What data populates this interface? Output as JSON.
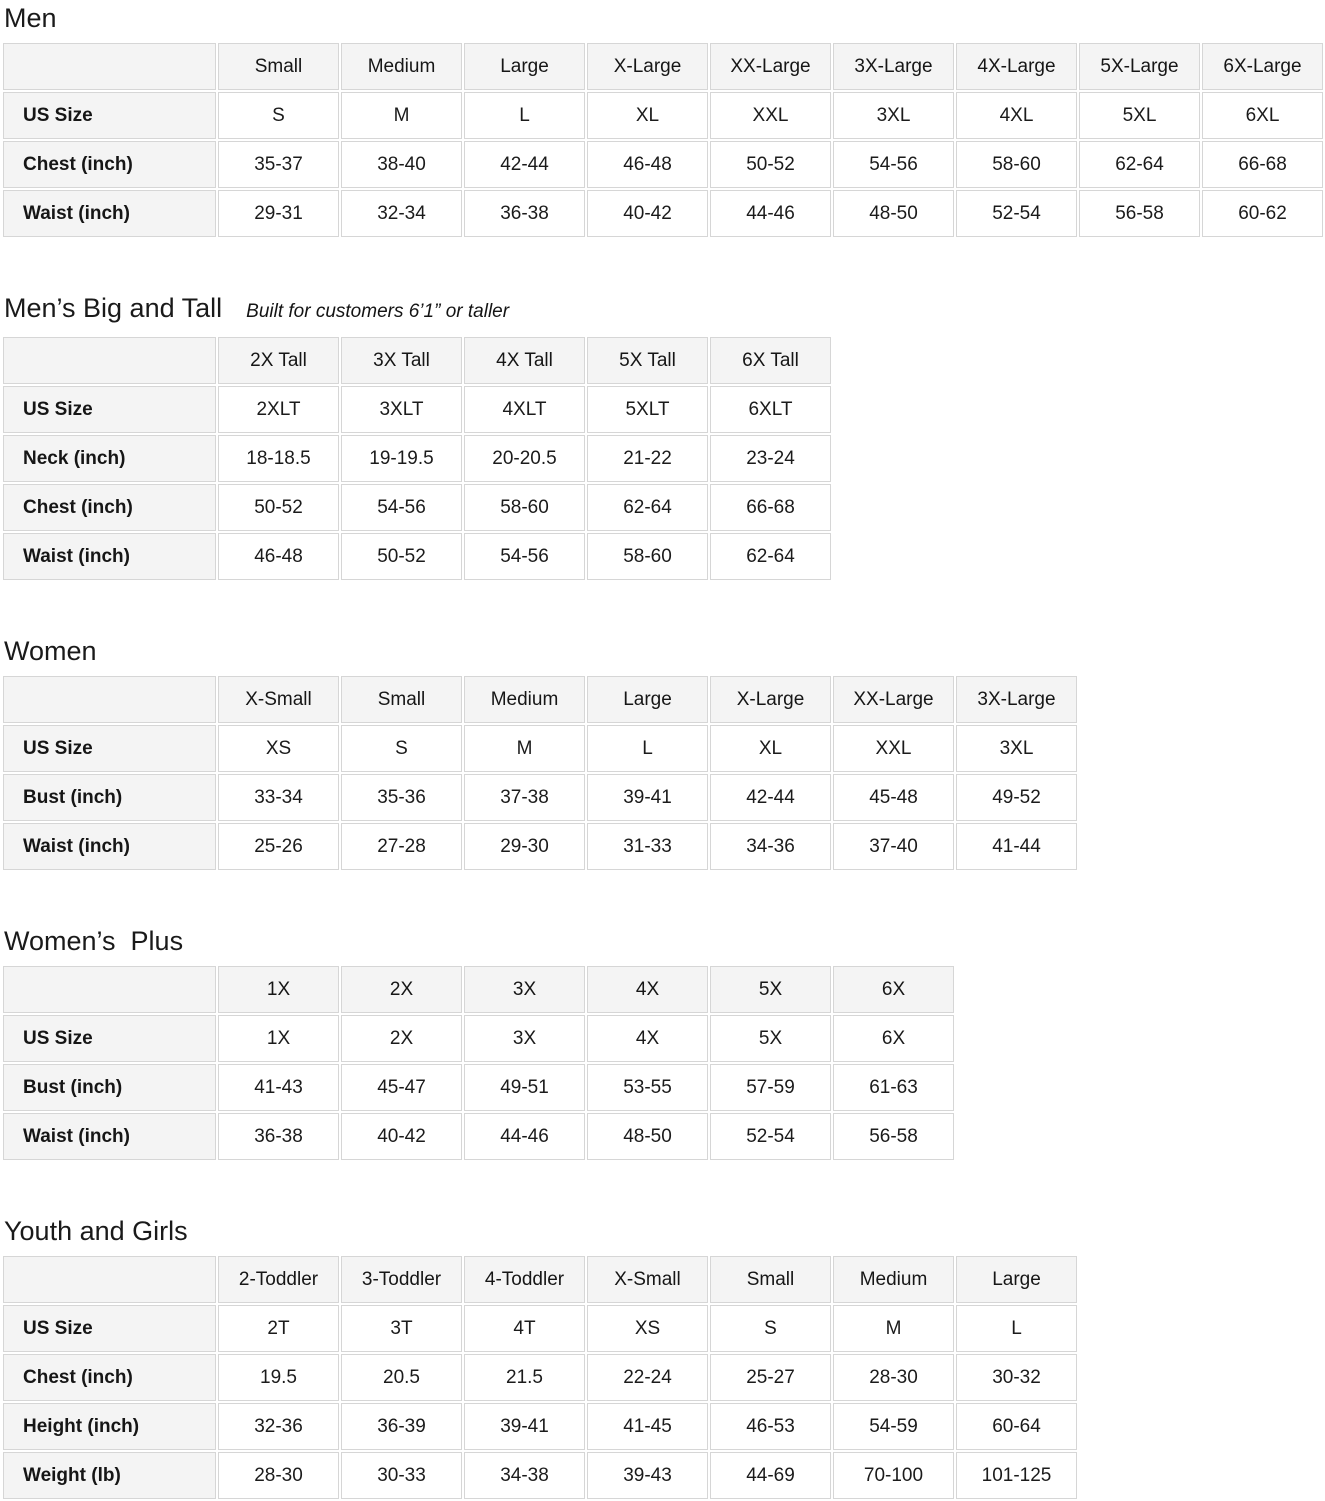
{
  "page": {
    "background": "#ffffff",
    "header_cell_bg": "#f4f4f4",
    "border_color": "#d6d6d6",
    "text_color": "#111111"
  },
  "sections": [
    {
      "title": "Men",
      "subtitle": "",
      "columns": [
        "Small",
        "Medium",
        "Large",
        "X-Large",
        "XX-Large",
        "3X-Large",
        "4X-Large",
        "5X-Large",
        "6X-Large"
      ],
      "rows": [
        {
          "label": "US Size",
          "values": [
            "S",
            "M",
            "L",
            "XL",
            "XXL",
            "3XL",
            "4XL",
            "5XL",
            "6XL"
          ]
        },
        {
          "label": "Chest (inch)",
          "values": [
            "35-37",
            "38-40",
            "42-44",
            "46-48",
            "50-52",
            "54-56",
            "58-60",
            "62-64",
            "66-68"
          ]
        },
        {
          "label": "Waist (inch)",
          "values": [
            "29-31",
            "32-34",
            "36-38",
            "40-42",
            "44-46",
            "48-50",
            "52-54",
            "56-58",
            "60-62"
          ]
        }
      ]
    },
    {
      "title": "Men’s Big and Tall",
      "subtitle": "Built for customers 6’1” or taller",
      "columns": [
        "2X Tall",
        "3X Tall",
        "4X Tall",
        "5X Tall",
        "6X Tall"
      ],
      "rows": [
        {
          "label": "US Size",
          "values": [
            "2XLT",
            "3XLT",
            "4XLT",
            "5XLT",
            "6XLT"
          ]
        },
        {
          "label": "Neck (inch)",
          "values": [
            "18-18.5",
            "19-19.5",
            "20-20.5",
            "21-22",
            "23-24"
          ]
        },
        {
          "label": "Chest (inch)",
          "values": [
            "50-52",
            "54-56",
            "58-60",
            "62-64",
            "66-68"
          ]
        },
        {
          "label": "Waist (inch)",
          "values": [
            "46-48",
            "50-52",
            "54-56",
            "58-60",
            "62-64"
          ]
        }
      ]
    },
    {
      "title": "Women",
      "subtitle": "",
      "columns": [
        "X-Small",
        "Small",
        "Medium",
        "Large",
        "X-Large",
        "XX-Large",
        "3X-Large"
      ],
      "rows": [
        {
          "label": "US Size",
          "values": [
            "XS",
            "S",
            "M",
            "L",
            "XL",
            "XXL",
            "3XL"
          ]
        },
        {
          "label": "Bust (inch)",
          "values": [
            "33-34",
            "35-36",
            "37-38",
            "39-41",
            "42-44",
            "45-48",
            "49-52"
          ]
        },
        {
          "label": "Waist (inch)",
          "values": [
            "25-26",
            "27-28",
            "29-30",
            "31-33",
            "34-36",
            "37-40",
            "41-44"
          ]
        }
      ]
    },
    {
      "title": "Women’s  Plus",
      "subtitle": "",
      "columns": [
        "1X",
        "2X",
        "3X",
        "4X",
        "5X",
        "6X"
      ],
      "rows": [
        {
          "label": "US Size",
          "values": [
            "1X",
            "2X",
            "3X",
            "4X",
            "5X",
            "6X"
          ]
        },
        {
          "label": "Bust (inch)",
          "values": [
            "41-43",
            "45-47",
            "49-51",
            "53-55",
            "57-59",
            "61-63"
          ]
        },
        {
          "label": "Waist (inch)",
          "values": [
            "36-38",
            "40-42",
            "44-46",
            "48-50",
            "52-54",
            "56-58"
          ]
        }
      ]
    },
    {
      "title": "Youth and Girls",
      "subtitle": "",
      "columns": [
        "2-Toddler",
        "3-Toddler",
        "4-Toddler",
        "X-Small",
        "Small",
        "Medium",
        "Large"
      ],
      "rows": [
        {
          "label": "US Size",
          "values": [
            "2T",
            "3T",
            "4T",
            "XS",
            "S",
            "M",
            "L"
          ]
        },
        {
          "label": "Chest (inch)",
          "values": [
            "19.5",
            "20.5",
            "21.5",
            "22-24",
            "25-27",
            "28-30",
            "30-32"
          ]
        },
        {
          "label": "Height (inch)",
          "values": [
            "32-36",
            "36-39",
            "39-41",
            "41-45",
            "46-53",
            "54-59",
            "60-64"
          ]
        },
        {
          "label": "Weight (lb)",
          "values": [
            "28-30",
            "30-33",
            "34-38",
            "39-43",
            "44-69",
            "70-100",
            "101-125"
          ]
        }
      ]
    }
  ]
}
